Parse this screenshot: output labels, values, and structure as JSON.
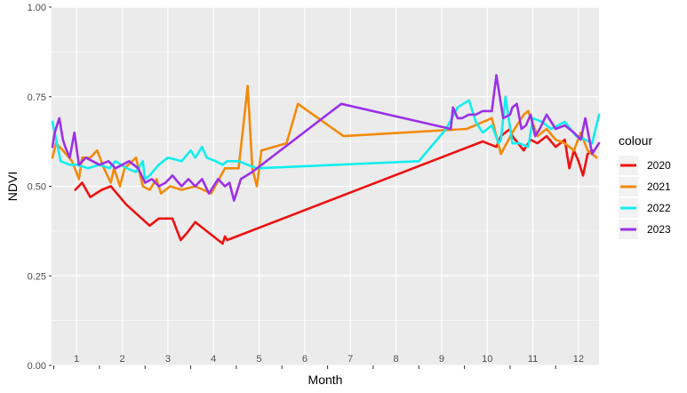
{
  "chart_data": {
    "type": "line",
    "title": "",
    "xlabel": "Month",
    "ylabel": "NDVI",
    "xlim": [
      0.45,
      12.45
    ],
    "ylim": [
      0,
      1
    ],
    "x_ticks": [
      1,
      2,
      3,
      4,
      5,
      6,
      7,
      8,
      9,
      10,
      11,
      12
    ],
    "x_tick_labels": [
      "1",
      "2",
      "3",
      "4",
      "5",
      "6",
      "7",
      "8",
      "9",
      "10",
      "11",
      "12"
    ],
    "y_ticks": [
      0,
      0.25,
      0.5,
      0.75,
      1
    ],
    "y_tick_labels": [
      "0.00",
      "0.25",
      "0.50",
      "0.75",
      "1.00"
    ],
    "grid": true,
    "legend": {
      "title": "colour",
      "placement": "right"
    },
    "series": [
      {
        "name": "2020",
        "color": "#ee1111",
        "x": [
          0.97,
          1.12,
          1.3,
          1.55,
          1.75,
          2.08,
          2.6,
          2.8,
          3.1,
          3.28,
          3.42,
          3.6,
          4.2,
          4.25,
          4.3,
          9.9,
          10.2,
          10.3,
          10.5,
          10.55,
          10.8,
          10.95,
          11.1,
          11.3,
          11.5,
          11.7,
          11.8,
          11.9,
          12.0,
          12.1,
          12.2,
          12.3
        ],
        "y": [
          0.49,
          0.51,
          0.47,
          0.49,
          0.5,
          0.45,
          0.39,
          0.41,
          0.41,
          0.35,
          0.37,
          0.4,
          0.34,
          0.36,
          0.35,
          0.625,
          0.61,
          0.64,
          0.66,
          0.64,
          0.6,
          0.63,
          0.62,
          0.64,
          0.61,
          0.63,
          0.55,
          0.6,
          0.57,
          0.53,
          0.59,
          0.6
        ]
      },
      {
        "name": "2021",
        "color": "#f28a0a",
        "x": [
          0.47,
          0.55,
          0.7,
          0.9,
          1.05,
          1.12,
          1.3,
          1.45,
          1.6,
          1.75,
          1.82,
          1.95,
          2.05,
          2.3,
          2.45,
          2.6,
          2.75,
          2.85,
          3.05,
          3.3,
          3.6,
          3.95,
          4.25,
          4.55,
          4.75,
          4.85,
          4.95,
          5.05,
          5.6,
          5.85,
          6.85,
          9.55,
          10.1,
          10.3,
          10.55,
          10.8,
          10.9,
          11.1,
          11.3,
          11.5,
          11.7,
          11.9,
          12.05,
          12.2,
          12.4
        ],
        "y": [
          0.58,
          0.62,
          0.6,
          0.57,
          0.52,
          0.58,
          0.58,
          0.6,
          0.55,
          0.51,
          0.55,
          0.5,
          0.55,
          0.58,
          0.5,
          0.49,
          0.52,
          0.48,
          0.5,
          0.49,
          0.5,
          0.48,
          0.55,
          0.55,
          0.78,
          0.55,
          0.5,
          0.6,
          0.62,
          0.73,
          0.64,
          0.66,
          0.69,
          0.59,
          0.65,
          0.7,
          0.71,
          0.64,
          0.66,
          0.63,
          0.62,
          0.6,
          0.65,
          0.6,
          0.58
        ]
      },
      {
        "name": "2022",
        "color": "#11eeee",
        "x": [
          0.47,
          0.65,
          0.85,
          1.0,
          1.25,
          1.5,
          1.72,
          1.85,
          2.1,
          2.3,
          2.45,
          2.5,
          2.6,
          2.8,
          3.0,
          3.3,
          3.5,
          3.6,
          3.75,
          3.85,
          4.05,
          4.2,
          4.3,
          4.55,
          4.95,
          8.5,
          9.1,
          9.35,
          9.6,
          9.75,
          9.9,
          10.1,
          10.25,
          10.3,
          10.4,
          10.55,
          10.7,
          10.9,
          11.0,
          11.2,
          11.4,
          11.7,
          11.95,
          12.15,
          12.3,
          12.45
        ],
        "y": [
          0.68,
          0.57,
          0.56,
          0.56,
          0.55,
          0.56,
          0.55,
          0.57,
          0.55,
          0.54,
          0.57,
          0.52,
          0.53,
          0.56,
          0.58,
          0.57,
          0.6,
          0.58,
          0.61,
          0.58,
          0.57,
          0.56,
          0.57,
          0.57,
          0.55,
          0.57,
          0.66,
          0.72,
          0.74,
          0.68,
          0.65,
          0.67,
          0.62,
          0.63,
          0.75,
          0.62,
          0.62,
          0.61,
          0.69,
          0.68,
          0.66,
          0.68,
          0.64,
          0.63,
          0.62,
          0.7
        ]
      },
      {
        "name": "2023",
        "color": "#9b30e8",
        "x": [
          0.47,
          0.52,
          0.62,
          0.7,
          0.75,
          0.85,
          0.95,
          1.05,
          1.2,
          1.35,
          1.5,
          1.7,
          1.85,
          2.0,
          2.15,
          2.35,
          2.5,
          2.65,
          2.8,
          2.95,
          3.1,
          3.3,
          3.45,
          3.6,
          3.75,
          3.9,
          4.1,
          4.25,
          4.35,
          4.45,
          4.6,
          4.85,
          6.8,
          9.2,
          9.25,
          9.35,
          9.45,
          9.6,
          9.75,
          9.9,
          10.0,
          10.1,
          10.2,
          10.35,
          10.5,
          10.55,
          10.65,
          10.75,
          10.85,
          10.95,
          11.05,
          11.15,
          11.3,
          11.5,
          11.7,
          11.9,
          12.05,
          12.15,
          12.3,
          12.45
        ],
        "y": [
          0.61,
          0.65,
          0.69,
          0.63,
          0.61,
          0.58,
          0.65,
          0.56,
          0.58,
          0.57,
          0.56,
          0.57,
          0.55,
          0.56,
          0.57,
          0.55,
          0.51,
          0.52,
          0.5,
          0.51,
          0.53,
          0.5,
          0.52,
          0.5,
          0.52,
          0.48,
          0.52,
          0.5,
          0.51,
          0.46,
          0.52,
          0.54,
          0.73,
          0.66,
          0.72,
          0.69,
          0.69,
          0.7,
          0.7,
          0.71,
          0.71,
          0.71,
          0.81,
          0.69,
          0.7,
          0.72,
          0.73,
          0.66,
          0.67,
          0.7,
          0.64,
          0.66,
          0.7,
          0.66,
          0.67,
          0.65,
          0.63,
          0.69,
          0.59,
          0.62
        ]
      }
    ]
  }
}
